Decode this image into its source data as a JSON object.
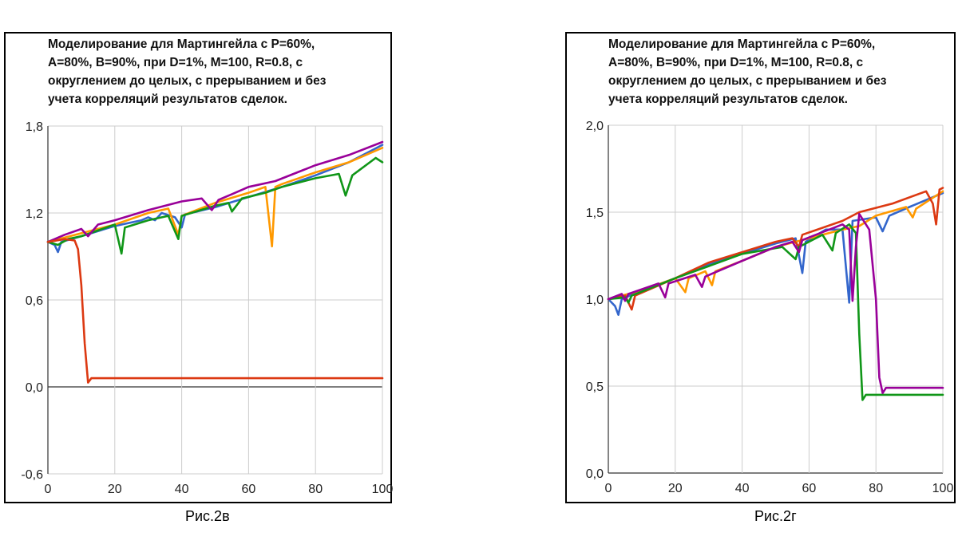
{
  "chart_data": [
    {
      "type": "line",
      "id": "left",
      "title_lines": [
        "Моделирование для Мартингейла с P=60%,",
        "A=80%, B=90%, при D=1%, M=100, R=0.8, с",
        "округлением до целых, с прерыванием и без",
        "учета корреляций результатов сделок."
      ],
      "caption": "Рис.2в",
      "xlim": [
        0,
        100
      ],
      "ylim": [
        -0.6,
        1.8
      ],
      "xticks": [
        0,
        20,
        40,
        60,
        80,
        100
      ],
      "xtick_labels": [
        "0",
        "20",
        "40",
        "60",
        "80",
        "100"
      ],
      "yticks": [
        -0.6,
        0,
        0.6,
        1.2,
        1.8
      ],
      "ytick_labels": [
        "-0,6",
        "0,0",
        "0,6",
        "1,2",
        "1,8"
      ],
      "grid": true,
      "series": [
        {
          "name": "blue",
          "color": "#3366cc",
          "points": [
            [
              0,
              1.0
            ],
            [
              2,
              0.98
            ],
            [
              3,
              0.93
            ],
            [
              4,
              1.0
            ],
            [
              10,
              1.04
            ],
            [
              20,
              1.11
            ],
            [
              28,
              1.15
            ],
            [
              30,
              1.17
            ],
            [
              32,
              1.15
            ],
            [
              34,
              1.2
            ],
            [
              38,
              1.17
            ],
            [
              40,
              1.1
            ],
            [
              41,
              1.19
            ],
            [
              50,
              1.24
            ],
            [
              60,
              1.31
            ],
            [
              70,
              1.38
            ],
            [
              80,
              1.46
            ],
            [
              90,
              1.55
            ],
            [
              100,
              1.67
            ]
          ]
        },
        {
          "name": "orange",
          "color": "#ff9900",
          "points": [
            [
              0,
              1.0
            ],
            [
              10,
              1.06
            ],
            [
              20,
              1.12
            ],
            [
              30,
              1.2
            ],
            [
              36,
              1.23
            ],
            [
              39,
              1.05
            ],
            [
              40,
              1.18
            ],
            [
              50,
              1.27
            ],
            [
              60,
              1.34
            ],
            [
              65,
              1.38
            ],
            [
              67,
              0.97
            ],
            [
              68,
              1.38
            ],
            [
              70,
              1.4
            ],
            [
              80,
              1.48
            ],
            [
              90,
              1.55
            ],
            [
              100,
              1.65
            ]
          ]
        },
        {
          "name": "green",
          "color": "#109618",
          "points": [
            [
              0,
              1.0
            ],
            [
              3,
              0.98
            ],
            [
              6,
              1.02
            ],
            [
              10,
              1.04
            ],
            [
              20,
              1.12
            ],
            [
              22,
              0.92
            ],
            [
              23,
              1.1
            ],
            [
              30,
              1.15
            ],
            [
              36,
              1.18
            ],
            [
              39,
              1.02
            ],
            [
              40,
              1.18
            ],
            [
              50,
              1.25
            ],
            [
              54,
              1.27
            ],
            [
              55,
              1.21
            ],
            [
              58,
              1.3
            ],
            [
              65,
              1.34
            ],
            [
              70,
              1.38
            ],
            [
              80,
              1.44
            ],
            [
              87,
              1.47
            ],
            [
              89,
              1.32
            ],
            [
              91,
              1.46
            ],
            [
              98,
              1.58
            ],
            [
              100,
              1.55
            ]
          ]
        },
        {
          "name": "purple",
          "color": "#990099",
          "points": [
            [
              0,
              1.0
            ],
            [
              5,
              1.05
            ],
            [
              10,
              1.09
            ],
            [
              12,
              1.04
            ],
            [
              15,
              1.12
            ],
            [
              20,
              1.15
            ],
            [
              30,
              1.22
            ],
            [
              40,
              1.28
            ],
            [
              46,
              1.3
            ],
            [
              49,
              1.22
            ],
            [
              51,
              1.29
            ],
            [
              55,
              1.33
            ],
            [
              60,
              1.38
            ],
            [
              68,
              1.42
            ],
            [
              80,
              1.53
            ],
            [
              90,
              1.6
            ],
            [
              100,
              1.69
            ]
          ]
        },
        {
          "name": "red",
          "color": "#dc3912",
          "points": [
            [
              0,
              1.0
            ],
            [
              5,
              1.02
            ],
            [
              8,
              1.01
            ],
            [
              9,
              0.95
            ],
            [
              10,
              0.7
            ],
            [
              11,
              0.3
            ],
            [
              12,
              0.03
            ],
            [
              13,
              0.06
            ],
            [
              100,
              0.06
            ]
          ]
        }
      ]
    },
    {
      "type": "line",
      "id": "right",
      "title_lines": [
        "Моделирование для Мартингейла с P=60%,",
        "A=80%, B=90%, при D=1%, M=100, R=0.8, с",
        "округлением до целых, с прерыванием и без",
        "учета корреляций результатов сделок."
      ],
      "caption": "Рис.2г",
      "xlim": [
        0,
        100
      ],
      "ylim": [
        0,
        2.0
      ],
      "xticks": [
        0,
        20,
        40,
        60,
        80,
        100
      ],
      "xtick_labels": [
        "0",
        "20",
        "40",
        "60",
        "80",
        "100"
      ],
      "yticks": [
        0,
        0.5,
        1.0,
        1.5,
        2.0
      ],
      "ytick_labels": [
        "0,0",
        "0,5",
        "1,0",
        "1,5",
        "2,0"
      ],
      "grid": true,
      "series": [
        {
          "name": "blue",
          "color": "#3366cc",
          "points": [
            [
              0,
              1.0
            ],
            [
              2,
              0.96
            ],
            [
              3,
              0.91
            ],
            [
              4,
              1.0
            ],
            [
              10,
              1.05
            ],
            [
              20,
              1.12
            ],
            [
              30,
              1.2
            ],
            [
              40,
              1.26
            ],
            [
              50,
              1.32
            ],
            [
              56,
              1.35
            ],
            [
              58,
              1.15
            ],
            [
              59,
              1.33
            ],
            [
              65,
              1.4
            ],
            [
              70,
              1.4
            ],
            [
              72,
              0.98
            ],
            [
              73,
              1.45
            ],
            [
              80,
              1.47
            ],
            [
              82,
              1.39
            ],
            [
              84,
              1.48
            ],
            [
              90,
              1.53
            ],
            [
              100,
              1.61
            ]
          ]
        },
        {
          "name": "orange",
          "color": "#ff9900",
          "points": [
            [
              0,
              1.0
            ],
            [
              10,
              1.05
            ],
            [
              20,
              1.12
            ],
            [
              23,
              1.04
            ],
            [
              24,
              1.12
            ],
            [
              29,
              1.16
            ],
            [
              31,
              1.08
            ],
            [
              32,
              1.16
            ],
            [
              40,
              1.22
            ],
            [
              50,
              1.3
            ],
            [
              60,
              1.35
            ],
            [
              70,
              1.4
            ],
            [
              75,
              1.42
            ],
            [
              80,
              1.48
            ],
            [
              89,
              1.53
            ],
            [
              91,
              1.47
            ],
            [
              92,
              1.52
            ],
            [
              100,
              1.62
            ]
          ]
        },
        {
          "name": "red",
          "color": "#dc3912",
          "points": [
            [
              0,
              1.0
            ],
            [
              5,
              1.02
            ],
            [
              7,
              0.94
            ],
            [
              8,
              1.02
            ],
            [
              20,
              1.12
            ],
            [
              30,
              1.21
            ],
            [
              40,
              1.27
            ],
            [
              50,
              1.33
            ],
            [
              55,
              1.35
            ],
            [
              57,
              1.3
            ],
            [
              58,
              1.37
            ],
            [
              70,
              1.45
            ],
            [
              75,
              1.5
            ],
            [
              85,
              1.55
            ],
            [
              95,
              1.62
            ],
            [
              97,
              1.55
            ],
            [
              98,
              1.43
            ],
            [
              99,
              1.63
            ],
            [
              100,
              1.64
            ]
          ]
        },
        {
          "name": "green",
          "color": "#109618",
          "points": [
            [
              0,
              1.0
            ],
            [
              5,
              1.01
            ],
            [
              6,
              0.98
            ],
            [
              7,
              1.02
            ],
            [
              20,
              1.12
            ],
            [
              30,
              1.19
            ],
            [
              40,
              1.26
            ],
            [
              52,
              1.3
            ],
            [
              56,
              1.23
            ],
            [
              57,
              1.3
            ],
            [
              64,
              1.37
            ],
            [
              67,
              1.28
            ],
            [
              68,
              1.38
            ],
            [
              72,
              1.43
            ],
            [
              74,
              1.38
            ],
            [
              75,
              0.8
            ],
            [
              76,
              0.42
            ],
            [
              77,
              0.45
            ],
            [
              100,
              0.45
            ]
          ]
        },
        {
          "name": "purple",
          "color": "#990099",
          "points": [
            [
              0,
              1.0
            ],
            [
              4,
              1.03
            ],
            [
              5,
              0.99
            ],
            [
              6,
              1.03
            ],
            [
              15,
              1.09
            ],
            [
              17,
              1.01
            ],
            [
              18,
              1.09
            ],
            [
              26,
              1.14
            ],
            [
              28,
              1.07
            ],
            [
              29,
              1.13
            ],
            [
              40,
              1.22
            ],
            [
              50,
              1.3
            ],
            [
              55,
              1.33
            ],
            [
              57,
              1.27
            ],
            [
              58,
              1.34
            ],
            [
              70,
              1.43
            ],
            [
              72,
              1.4
            ],
            [
              73,
              0.99
            ],
            [
              74,
              1.3
            ],
            [
              75,
              1.49
            ],
            [
              78,
              1.4
            ],
            [
              80,
              1.0
            ],
            [
              81,
              0.55
            ],
            [
              82,
              0.46
            ],
            [
              83,
              0.49
            ],
            [
              100,
              0.49
            ]
          ]
        }
      ]
    }
  ]
}
